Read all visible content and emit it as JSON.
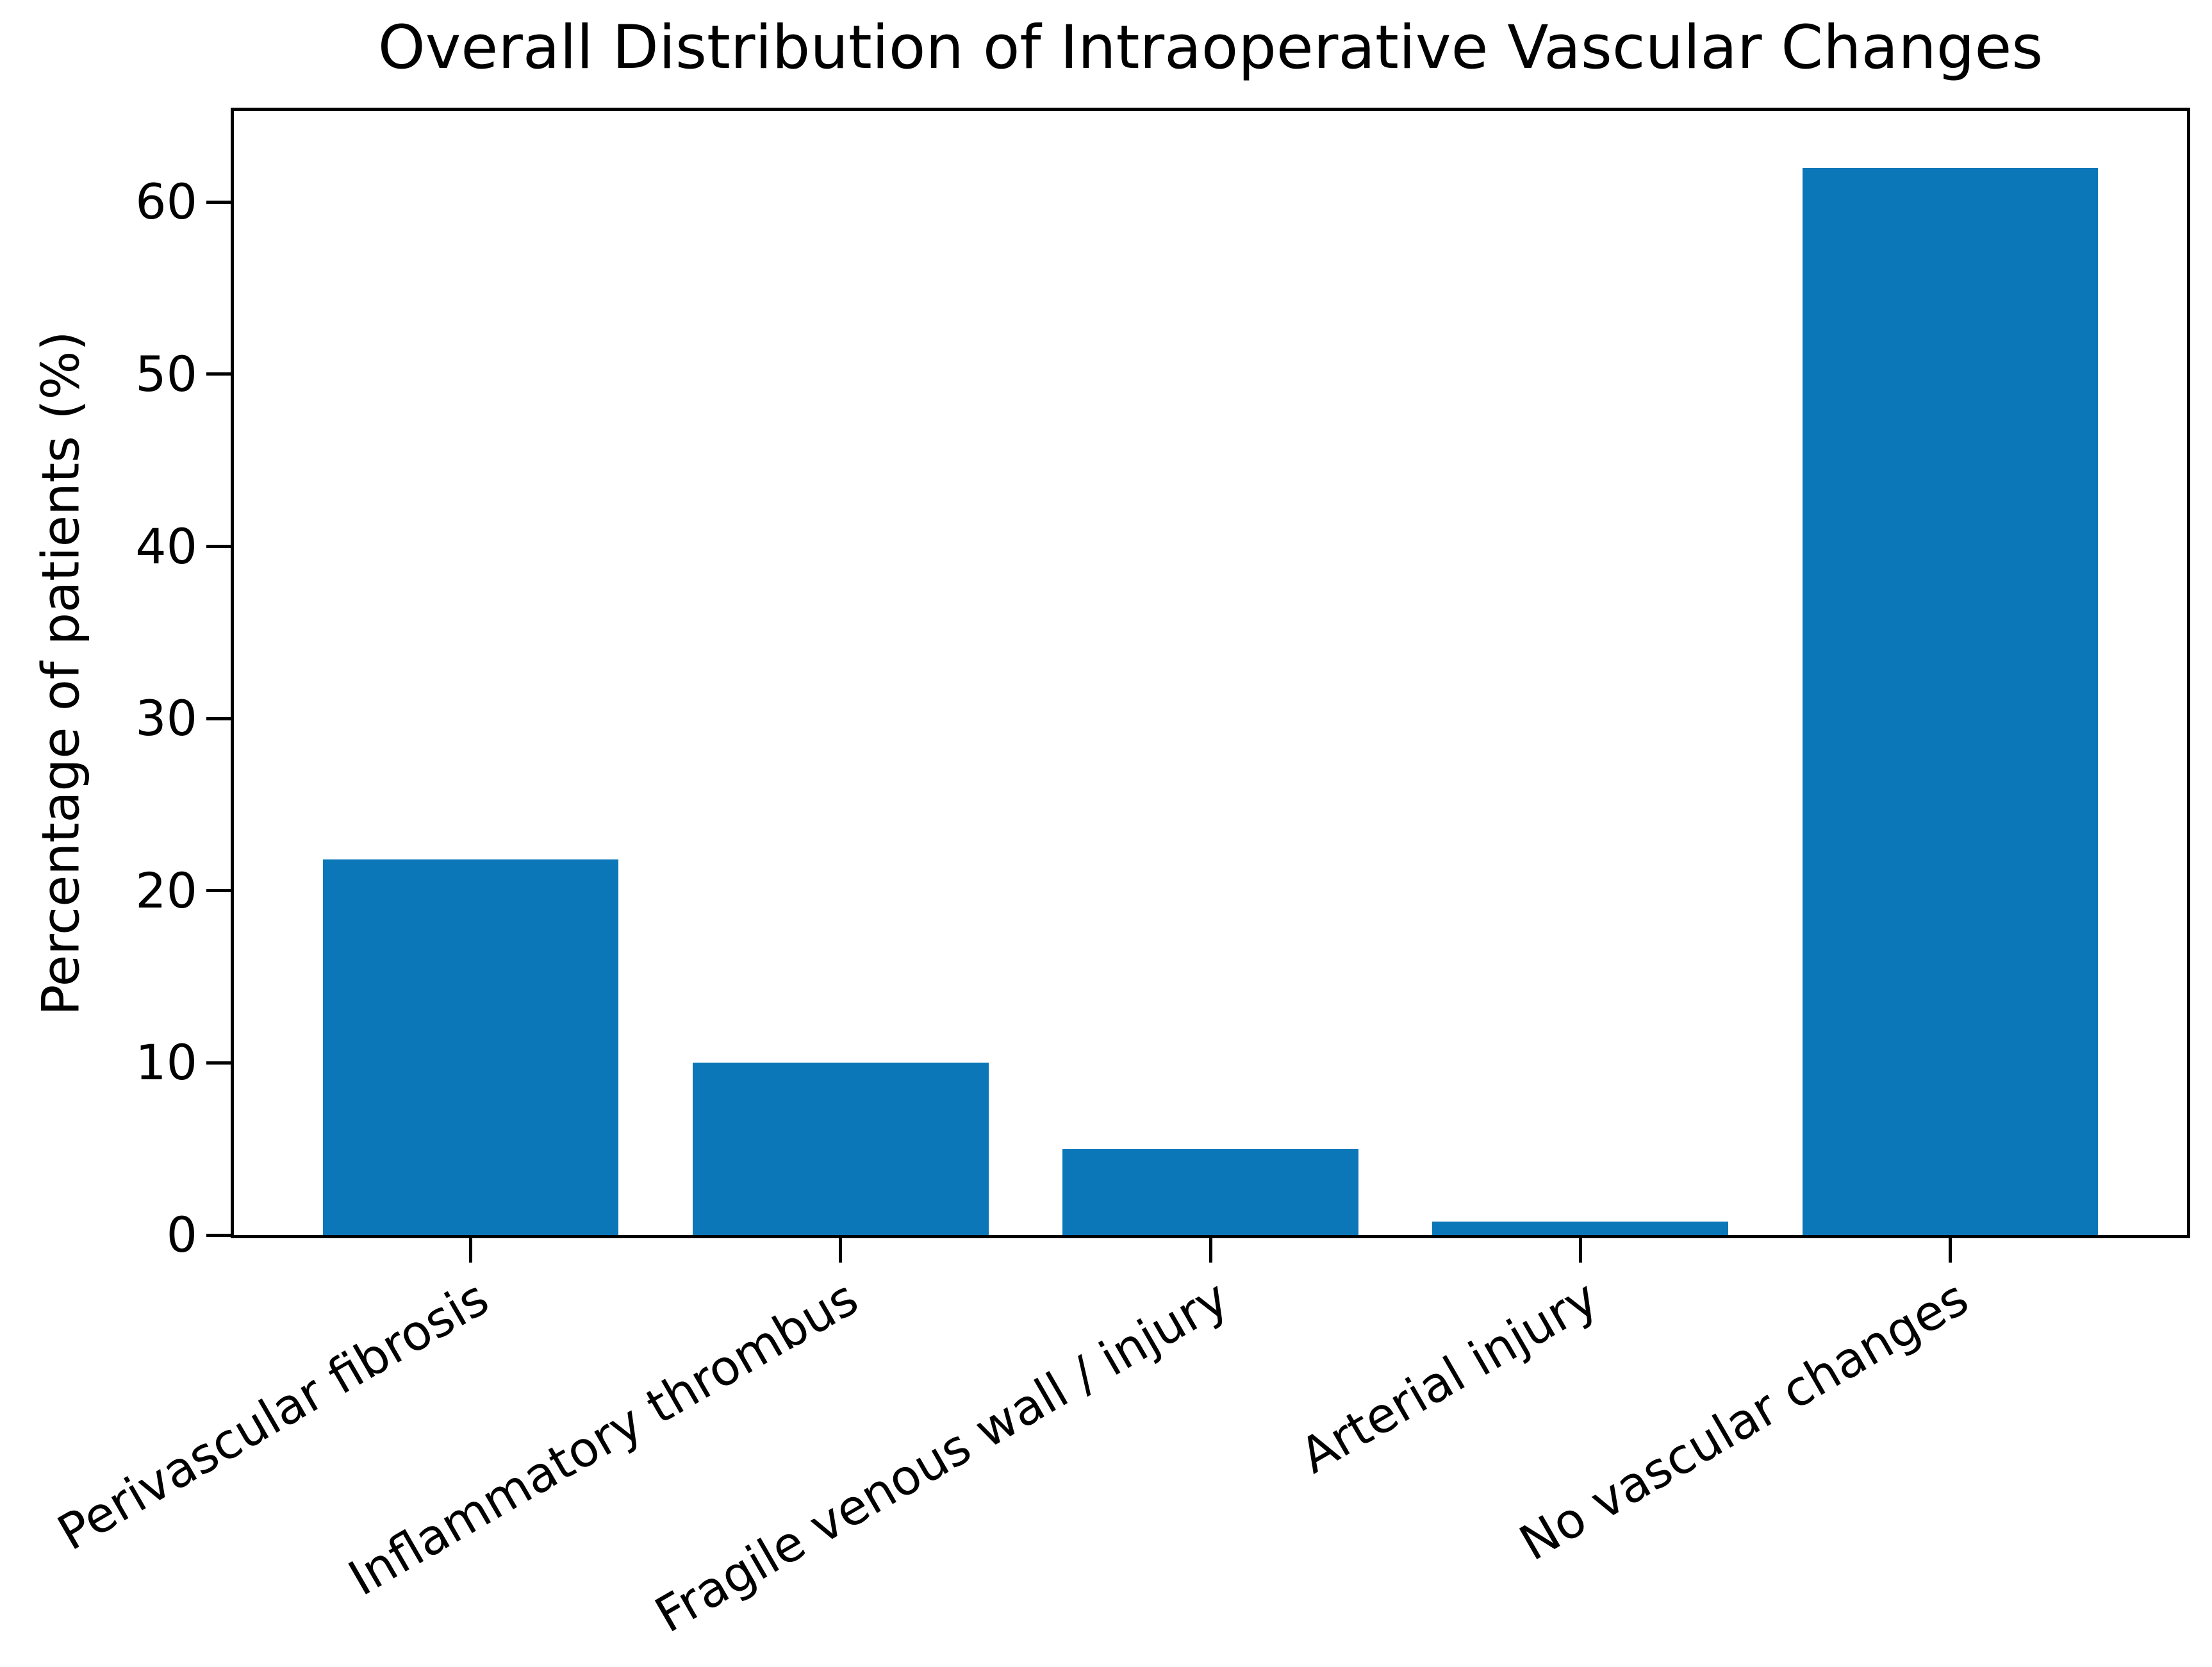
{
  "figure": {
    "background": "#ffffff",
    "text_color": "#000000"
  },
  "chart_data": {
    "type": "bar",
    "title": "Overall Distribution of Intraoperative Vascular Changes",
    "xlabel": "",
    "ylabel": "Percentage of patients (%)",
    "categories": [
      "Perivascular fibrosis",
      "Inflammatory thrombus",
      "Fragile venous wall / injury",
      "Arterial injury",
      "No vascular changes"
    ],
    "values": [
      21.8,
      10.0,
      5.0,
      0.8,
      62.0
    ],
    "yticks": [
      0,
      10,
      20,
      30,
      40,
      50,
      60
    ],
    "ylim": [
      0,
      65.3
    ],
    "xtick_rotation_deg": 30,
    "bar_color": "#0b76b8",
    "spine_color": "#000000",
    "grid": false,
    "legend_position": "none"
  }
}
